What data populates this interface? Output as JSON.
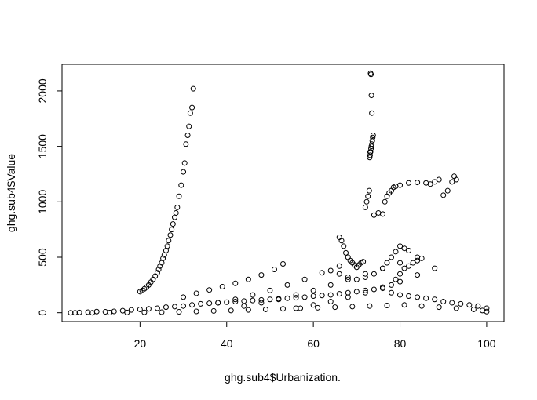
{
  "chart_data": {
    "type": "scatter",
    "title": "",
    "xlabel": "ghg.sub4$Urbanization.",
    "ylabel": "ghg.sub4$Value",
    "xlim": [
      2,
      104
    ],
    "ylim": [
      -80,
      2240
    ],
    "x_ticks": [
      20,
      40,
      60,
      80,
      100
    ],
    "y_ticks": [
      0,
      500,
      1000,
      1500,
      2000
    ],
    "grid": false,
    "legend": "none",
    "marker": "open-circle",
    "series": [
      {
        "x": [
          20,
          20.5,
          21,
          21.5,
          22,
          22.5,
          23,
          23.5,
          24,
          24.3,
          24.6,
          25,
          25.3,
          25.6,
          26,
          26.3,
          26.6,
          27,
          27.3,
          27.6,
          28,
          28.3,
          28.6,
          29,
          29.5,
          30,
          30.3,
          30.6,
          31,
          31.3,
          31.6,
          32,
          32.3
        ],
        "y": [
          190,
          200,
          215,
          230,
          250,
          275,
          300,
          330,
          360,
          390,
          420,
          450,
          490,
          520,
          560,
          600,
          650,
          700,
          750,
          800,
          860,
          900,
          950,
          1050,
          1150,
          1270,
          1350,
          1520,
          1600,
          1680,
          1800,
          1850,
          2020
        ]
      },
      {
        "x": [
          72,
          72.3,
          72.6,
          72.9,
          73,
          73.1,
          73.2,
          73.3,
          73.4,
          73.5,
          73.6,
          73.7,
          73.8,
          73.5,
          73.4,
          73.3,
          73.2,
          73.1
        ],
        "y": [
          950,
          1000,
          1050,
          1100,
          1400,
          1420,
          1450,
          1480,
          1500,
          1520,
          1550,
          1580,
          1600,
          1800,
          1960,
          2150,
          2160,
          1450
        ]
      },
      {
        "x": [
          74,
          75,
          76,
          76.5,
          77,
          77.5,
          78,
          78.5,
          79,
          80,
          82,
          84,
          86,
          87,
          88,
          89,
          90,
          91,
          92,
          92.5,
          93
        ],
        "y": [
          880,
          900,
          890,
          1000,
          1050,
          1080,
          1100,
          1130,
          1140,
          1150,
          1170,
          1175,
          1170,
          1160,
          1180,
          1200,
          1060,
          1100,
          1180,
          1230,
          1200
        ]
      },
      {
        "x": [
          66,
          66.5,
          67,
          67.5,
          68,
          68.5,
          69,
          69.5,
          70,
          70.5,
          71,
          71.5
        ],
        "y": [
          680,
          650,
          600,
          540,
          500,
          470,
          450,
          430,
          410,
          430,
          450,
          460
        ]
      },
      {
        "x": [
          30,
          33,
          36,
          39,
          42,
          45,
          48,
          51,
          53,
          38,
          42,
          46,
          50,
          54,
          58,
          62,
          66,
          44,
          48,
          52,
          56,
          60,
          64,
          68,
          72,
          76,
          80,
          84,
          56,
          60,
          64,
          68,
          72,
          76,
          80,
          84,
          88
        ],
        "y": [
          140,
          175,
          205,
          235,
          265,
          300,
          340,
          390,
          440,
          90,
          120,
          160,
          200,
          250,
          300,
          360,
          420,
          60,
          90,
          120,
          160,
          200,
          250,
          300,
          350,
          400,
          450,
          500,
          40,
          70,
          100,
          140,
          180,
          230,
          280,
          340,
          400
        ]
      },
      {
        "x": [
          4,
          6,
          8,
          10,
          12,
          14,
          16,
          18,
          20,
          22,
          24,
          26,
          28,
          30,
          32,
          34,
          36,
          38,
          40,
          42,
          44,
          46,
          48,
          50,
          52,
          54,
          56,
          58,
          60,
          62,
          64,
          66,
          68,
          70,
          72,
          74,
          76,
          78,
          80,
          82,
          84,
          86,
          88,
          90,
          92,
          94,
          96,
          98,
          100,
          100
        ],
        "y": [
          0,
          2,
          5,
          10,
          8,
          12,
          18,
          25,
          30,
          35,
          40,
          50,
          55,
          60,
          70,
          80,
          85,
          90,
          95,
          100,
          105,
          110,
          115,
          120,
          125,
          130,
          135,
          140,
          150,
          155,
          160,
          170,
          180,
          190,
          200,
          210,
          220,
          180,
          160,
          150,
          140,
          130,
          120,
          100,
          90,
          80,
          70,
          60,
          40,
          10
        ]
      },
      {
        "x": [
          5,
          9,
          13,
          17,
          21,
          25,
          29,
          33,
          37,
          41,
          45,
          49,
          53,
          57,
          61,
          65,
          69,
          73,
          77,
          81,
          85,
          89,
          93,
          97,
          99
        ],
        "y": [
          0,
          0,
          1,
          2,
          3,
          5,
          8,
          12,
          16,
          20,
          25,
          30,
          35,
          40,
          45,
          50,
          55,
          60,
          65,
          70,
          60,
          50,
          40,
          30,
          20
        ]
      },
      {
        "x": [
          64,
          66,
          68,
          70,
          72,
          74,
          76,
          77,
          78,
          79,
          80,
          81,
          82,
          78,
          79,
          80,
          81,
          82,
          83,
          84,
          85
        ],
        "y": [
          380,
          350,
          320,
          300,
          320,
          350,
          400,
          450,
          500,
          550,
          600,
          580,
          560,
          250,
          300,
          350,
          400,
          420,
          450,
          470,
          490
        ]
      }
    ]
  }
}
